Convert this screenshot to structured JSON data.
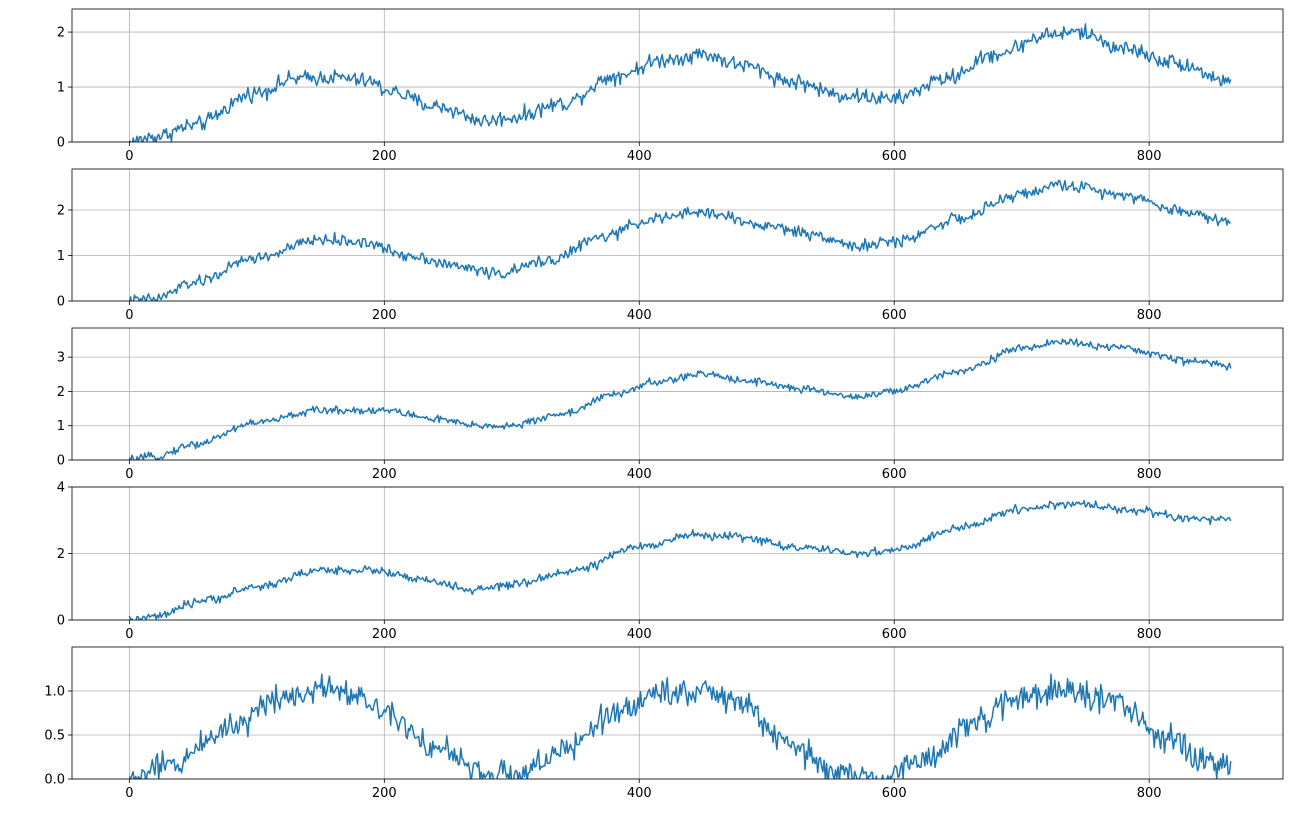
{
  "colors": {
    "line": "#1f77b4",
    "grid": "#b0b0b0",
    "axes": "#000000"
  },
  "chart_data": [
    {
      "type": "line",
      "grid": true,
      "xlim": [
        -45,
        905
      ],
      "ylim": [
        0,
        2.42
      ],
      "x_ticks": [
        0,
        200,
        400,
        600,
        800
      ],
      "x_tick_labels": [
        "0",
        "200",
        "400",
        "600",
        "800"
      ],
      "y_ticks": [
        0,
        1,
        2
      ],
      "y_tick_labels": [
        "0",
        "1",
        "2"
      ],
      "series": [
        {
          "x_range": [
            0,
            864
          ],
          "noise": 0.1,
          "anchors": [
            [
              0,
              0.0
            ],
            [
              20,
              0.1
            ],
            [
              50,
              0.3
            ],
            [
              100,
              0.9
            ],
            [
              130,
              1.15
            ],
            [
              160,
              1.18
            ],
            [
              190,
              1.1
            ],
            [
              200,
              0.95
            ],
            [
              240,
              0.65
            ],
            [
              280,
              0.38
            ],
            [
              300,
              0.45
            ],
            [
              340,
              0.7
            ],
            [
              380,
              1.2
            ],
            [
              420,
              1.5
            ],
            [
              450,
              1.6
            ],
            [
              480,
              1.4
            ],
            [
              520,
              1.1
            ],
            [
              560,
              0.85
            ],
            [
              600,
              0.78
            ],
            [
              640,
              1.15
            ],
            [
              680,
              1.6
            ],
            [
              720,
              1.95
            ],
            [
              745,
              2.0
            ],
            [
              780,
              1.7
            ],
            [
              820,
              1.45
            ],
            [
              864,
              1.1
            ]
          ]
        }
      ]
    },
    {
      "type": "line",
      "grid": true,
      "xlim": [
        -45,
        905
      ],
      "ylim": [
        0,
        2.9
      ],
      "x_ticks": [
        0,
        200,
        400,
        600,
        800
      ],
      "x_tick_labels": [
        "0",
        "200",
        "400",
        "600",
        "800"
      ],
      "y_ticks": [
        0,
        1,
        2
      ],
      "y_tick_labels": [
        "0",
        "1",
        "2"
      ],
      "series": [
        {
          "x_range": [
            0,
            864
          ],
          "noise": 0.09,
          "anchors": [
            [
              0,
              0.0
            ],
            [
              20,
              0.05
            ],
            [
              50,
              0.4
            ],
            [
              100,
              0.95
            ],
            [
              150,
              1.35
            ],
            [
              180,
              1.3
            ],
            [
              220,
              1.0
            ],
            [
              260,
              0.75
            ],
            [
              290,
              0.6
            ],
            [
              330,
              0.9
            ],
            [
              370,
              1.4
            ],
            [
              410,
              1.8
            ],
            [
              450,
              1.95
            ],
            [
              500,
              1.65
            ],
            [
              540,
              1.45
            ],
            [
              570,
              1.2
            ],
            [
              600,
              1.3
            ],
            [
              650,
              1.8
            ],
            [
              700,
              2.35
            ],
            [
              730,
              2.55
            ],
            [
              780,
              2.35
            ],
            [
              820,
              2.0
            ],
            [
              864,
              1.75
            ]
          ]
        }
      ]
    },
    {
      "type": "line",
      "grid": true,
      "xlim": [
        -45,
        905
      ],
      "ylim": [
        0,
        3.85
      ],
      "x_ticks": [
        0,
        200,
        400,
        600,
        800
      ],
      "x_tick_labels": [
        "0",
        "200",
        "400",
        "600",
        "800"
      ],
      "y_ticks": [
        0,
        1,
        2,
        3
      ],
      "y_tick_labels": [
        "0",
        "1",
        "2",
        "3"
      ],
      "series": [
        {
          "x_range": [
            0,
            864
          ],
          "noise": 0.08,
          "anchors": [
            [
              0,
              0.0
            ],
            [
              20,
              0.1
            ],
            [
              50,
              0.45
            ],
            [
              100,
              1.1
            ],
            [
              150,
              1.45
            ],
            [
              200,
              1.45
            ],
            [
              240,
              1.2
            ],
            [
              270,
              1.0
            ],
            [
              300,
              1.0
            ],
            [
              340,
              1.35
            ],
            [
              380,
              1.9
            ],
            [
              410,
              2.25
            ],
            [
              450,
              2.5
            ],
            [
              490,
              2.3
            ],
            [
              530,
              2.05
            ],
            [
              570,
              1.85
            ],
            [
              600,
              2.0
            ],
            [
              650,
              2.6
            ],
            [
              700,
              3.25
            ],
            [
              730,
              3.45
            ],
            [
              780,
              3.25
            ],
            [
              830,
              2.9
            ],
            [
              864,
              2.75
            ]
          ]
        }
      ]
    },
    {
      "type": "line",
      "grid": true,
      "xlim": [
        -45,
        905
      ],
      "ylim": [
        0,
        4.0
      ],
      "x_ticks": [
        0,
        200,
        400,
        600,
        800
      ],
      "x_tick_labels": [
        "0",
        "200",
        "400",
        "600",
        "800"
      ],
      "y_ticks": [
        0,
        2,
        4
      ],
      "y_tick_labels": [
        "0",
        "2",
        "4"
      ],
      "series": [
        {
          "x_range": [
            0,
            864
          ],
          "noise": 0.09,
          "anchors": [
            [
              0,
              0.0
            ],
            [
              20,
              0.1
            ],
            [
              60,
              0.6
            ],
            [
              100,
              1.0
            ],
            [
              150,
              1.5
            ],
            [
              190,
              1.5
            ],
            [
              230,
              1.2
            ],
            [
              270,
              0.9
            ],
            [
              300,
              1.05
            ],
            [
              350,
              1.5
            ],
            [
              400,
              2.2
            ],
            [
              440,
              2.55
            ],
            [
              480,
              2.5
            ],
            [
              520,
              2.2
            ],
            [
              570,
              2.0
            ],
            [
              600,
              2.1
            ],
            [
              650,
              2.75
            ],
            [
              700,
              3.35
            ],
            [
              740,
              3.5
            ],
            [
              790,
              3.3
            ],
            [
              830,
              3.05
            ],
            [
              864,
              3.0
            ]
          ]
        }
      ]
    },
    {
      "type": "line",
      "grid": true,
      "xlim": [
        -45,
        905
      ],
      "ylim": [
        0,
        1.5
      ],
      "x_ticks": [
        0,
        200,
        400,
        600,
        800
      ],
      "x_tick_labels": [
        "0",
        "200",
        "400",
        "600",
        "800"
      ],
      "y_ticks": [
        0,
        0.5,
        1.0
      ],
      "y_tick_labels": [
        "0.0",
        "0.5",
        "1.0"
      ],
      "series": [
        {
          "x_range": [
            0,
            864
          ],
          "noise": 0.11,
          "anchors": [
            [
              0,
              0.0
            ],
            [
              30,
              0.15
            ],
            [
              80,
              0.6
            ],
            [
              120,
              0.95
            ],
            [
              160,
              1.05
            ],
            [
              200,
              0.8
            ],
            [
              240,
              0.35
            ],
            [
              280,
              0.05
            ],
            [
              300,
              0.05
            ],
            [
              340,
              0.3
            ],
            [
              380,
              0.75
            ],
            [
              420,
              1.0
            ],
            [
              450,
              1.0
            ],
            [
              480,
              0.85
            ],
            [
              520,
              0.35
            ],
            [
              560,
              0.05
            ],
            [
              590,
              0.0
            ],
            [
              620,
              0.2
            ],
            [
              660,
              0.6
            ],
            [
              700,
              0.95
            ],
            [
              730,
              1.0
            ],
            [
              770,
              0.9
            ],
            [
              810,
              0.5
            ],
            [
              840,
              0.2
            ],
            [
              864,
              0.15
            ]
          ]
        }
      ]
    }
  ]
}
